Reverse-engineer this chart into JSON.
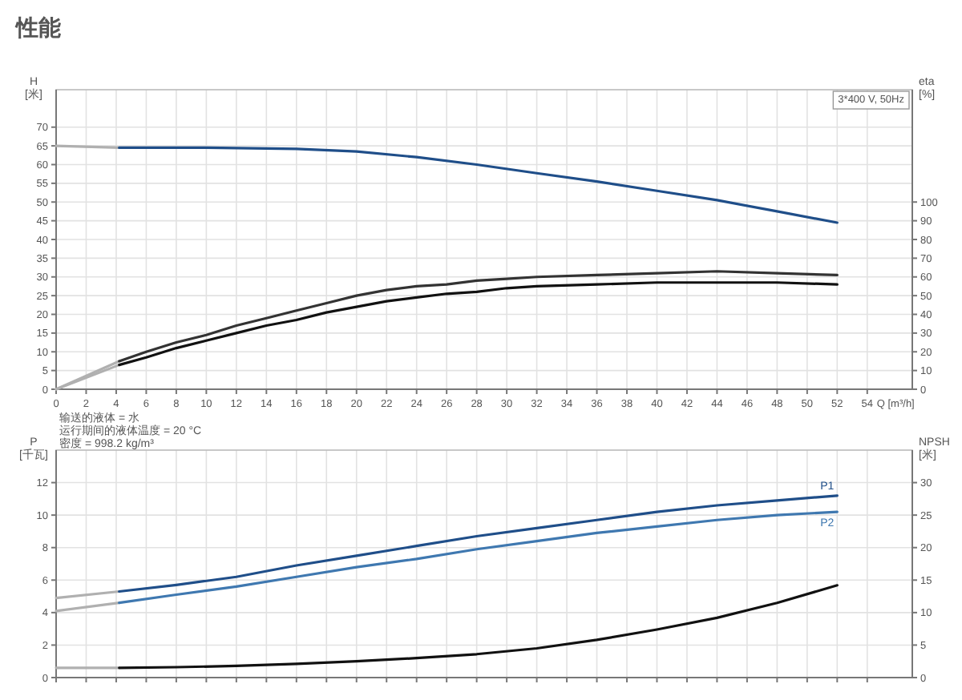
{
  "chart_data": [
    {
      "type": "line",
      "title": "性能",
      "xlabel": "Q [m³/h]",
      "ylabel": "H [米]",
      "y2label": "eta [%]",
      "xlim": [
        0,
        57
      ],
      "xticks": [
        0,
        2,
        4,
        6,
        8,
        10,
        12,
        14,
        16,
        18,
        20,
        22,
        24,
        26,
        28,
        30,
        32,
        34,
        36,
        38,
        40,
        42,
        44,
        46,
        48,
        50,
        52,
        54
      ],
      "ylim": [
        0,
        80
      ],
      "yticks": [
        0,
        5,
        10,
        15,
        20,
        25,
        30,
        35,
        40,
        45,
        50,
        55,
        60,
        65,
        70
      ],
      "y2lim": [
        0,
        160
      ],
      "y2ticks": [
        0,
        10,
        20,
        30,
        40,
        50,
        60,
        70,
        80,
        90,
        100
      ],
      "grid": true,
      "annotations": [
        "3*400 V, 50Hz",
        "输送的液体 = 水",
        "运行期间的液体温度 = 20 °C",
        "密度 = 998.2 kg/m³"
      ],
      "series": [
        {
          "color": "#b0b0b0",
          "x": [
            0,
            4.2
          ],
          "values": [
            65,
            64.5
          ]
        },
        {
          "color": "#1f4e89",
          "x": [
            4.2,
            10,
            16,
            20,
            24,
            28,
            32,
            36,
            40,
            44,
            48,
            52
          ],
          "values": [
            64.5,
            64.5,
            64.2,
            63.5,
            62,
            60,
            57.7,
            55.5,
            53,
            50.5,
            47.5,
            44.5
          ]
        },
        {
          "color": "#b0b0b0",
          "axis": "y2",
          "x": [
            0,
            4.2
          ],
          "values": [
            0,
            15
          ]
        },
        {
          "color": "#333333",
          "axis": "y2",
          "x": [
            4.2,
            6,
            8,
            10,
            12,
            14,
            16,
            18,
            20,
            22,
            24,
            26,
            28,
            30,
            32,
            36,
            40,
            44,
            48,
            52
          ],
          "values": [
            15,
            20,
            25,
            29,
            34,
            38,
            42,
            46,
            50,
            53,
            55,
            56,
            58,
            59,
            60,
            61,
            62,
            63,
            62,
            61
          ]
        },
        {
          "color": "#b0b0b0",
          "axis": "y2",
          "x": [
            0,
            4.2
          ],
          "values": [
            0,
            13
          ]
        },
        {
          "color": "#111111",
          "axis": "y2",
          "x": [
            4.2,
            6,
            8,
            10,
            12,
            14,
            16,
            18,
            20,
            22,
            24,
            26,
            28,
            30,
            32,
            36,
            40,
            44,
            48,
            52
          ],
          "values": [
            13,
            17,
            22,
            26,
            30,
            34,
            37,
            41,
            44,
            47,
            49,
            51,
            52,
            54,
            55,
            56,
            57,
            57,
            57,
            56
          ]
        }
      ]
    },
    {
      "type": "line",
      "ylabel": "P [千瓦]",
      "y2label": "NPSH [米]",
      "xlim": [
        0,
        57
      ],
      "xticks": [
        0,
        2,
        4,
        6,
        8,
        10,
        12,
        14,
        16,
        18,
        20,
        22,
        24,
        26,
        28,
        30,
        32,
        34,
        36,
        38,
        40,
        42,
        44,
        46,
        48,
        50,
        52,
        54
      ],
      "ylim": [
        0,
        14
      ],
      "yticks": [
        0,
        2,
        4,
        6,
        8,
        10,
        12
      ],
      "y2lim": [
        0,
        35
      ],
      "y2ticks": [
        0,
        5,
        10,
        15,
        20,
        25,
        30
      ],
      "grid": true,
      "tick_labels": "y",
      "series": [
        {
          "color": "#b0b0b0",
          "x": [
            0,
            4.2
          ],
          "values": [
            4.9,
            5.3
          ]
        },
        {
          "name": "P1",
          "color": "#1f4e89",
          "x": [
            4.2,
            8,
            12,
            16,
            20,
            24,
            28,
            32,
            36,
            40,
            44,
            48,
            52
          ],
          "values": [
            5.3,
            5.7,
            6.2,
            6.9,
            7.5,
            8.1,
            8.7,
            9.2,
            9.7,
            10.2,
            10.6,
            10.9,
            11.2
          ]
        },
        {
          "color": "#b0b0b0",
          "x": [
            0,
            4.2
          ],
          "values": [
            4.1,
            4.6
          ]
        },
        {
          "name": "P2",
          "color": "#3f78b0",
          "x": [
            4.2,
            8,
            12,
            16,
            20,
            24,
            28,
            32,
            36,
            40,
            44,
            48,
            52
          ],
          "values": [
            4.6,
            5.1,
            5.6,
            6.2,
            6.8,
            7.3,
            7.9,
            8.4,
            8.9,
            9.3,
            9.7,
            10.0,
            10.2
          ]
        },
        {
          "color": "#b0b0b0",
          "axis": "y2",
          "x": [
            0,
            4.2
          ],
          "values": [
            1.5,
            1.5
          ]
        },
        {
          "color": "#111111",
          "axis": "y2",
          "x": [
            4.2,
            8,
            12,
            16,
            20,
            24,
            28,
            32,
            36,
            40,
            44,
            48,
            52
          ],
          "values": [
            1.5,
            1.6,
            1.8,
            2.1,
            2.5,
            3.0,
            3.6,
            4.5,
            5.8,
            7.4,
            9.2,
            11.5,
            14.2
          ]
        }
      ]
    }
  ]
}
